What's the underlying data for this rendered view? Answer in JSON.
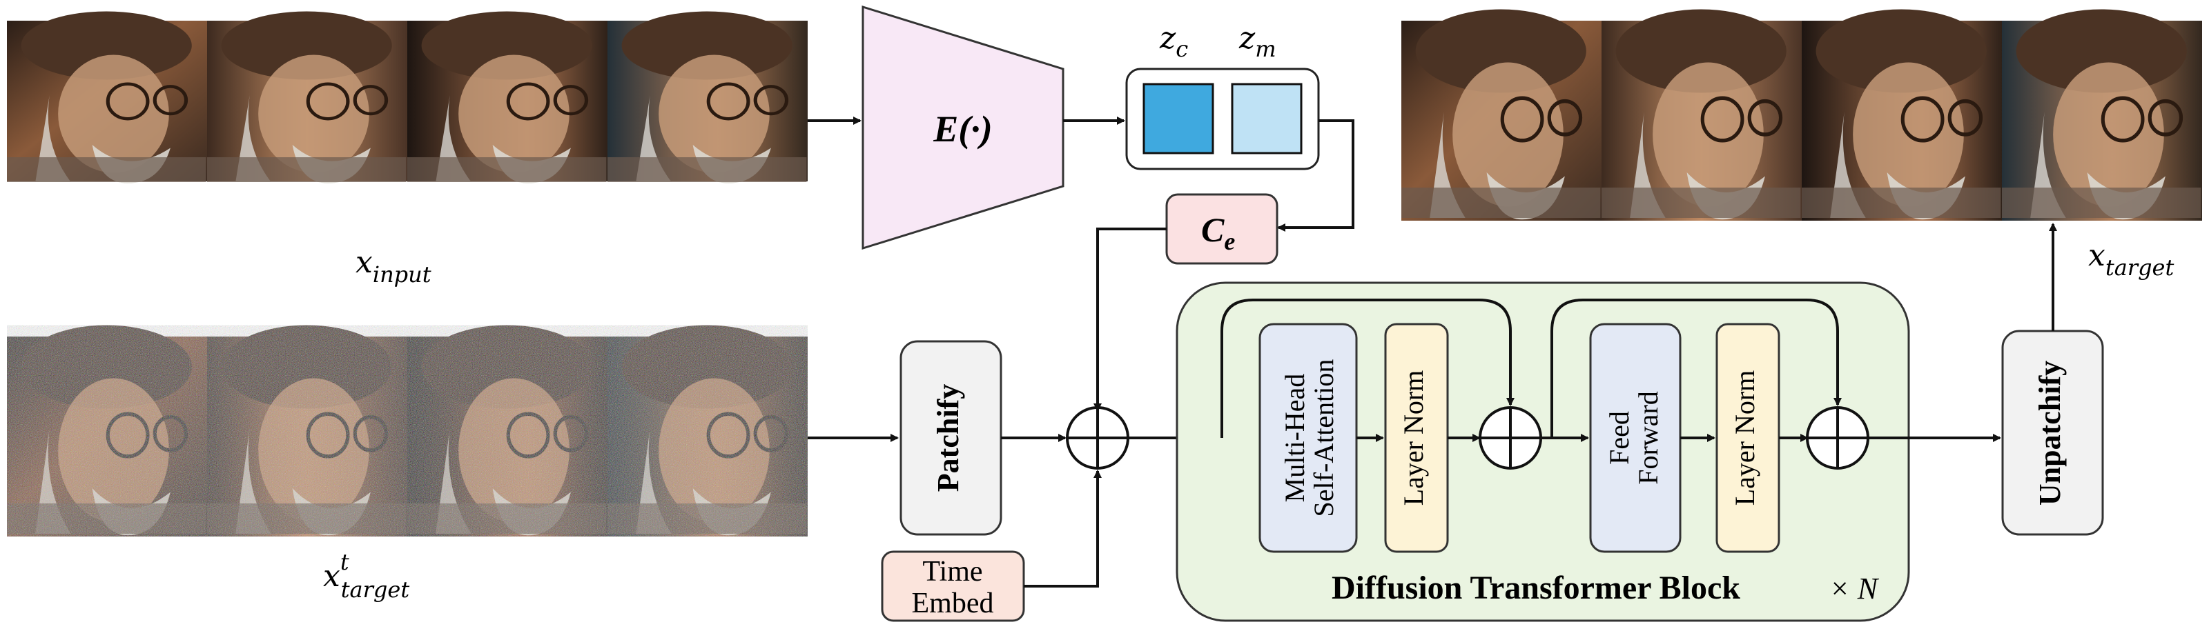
{
  "figure": {
    "top_input_label": "x",
    "top_input_sub": "input",
    "noisy_label": "x",
    "noisy_sup": "t",
    "noisy_sub": "target",
    "output_label": "x",
    "output_sub": "target",
    "encoder_label": "E(·)",
    "latent_zc_main": "z",
    "latent_zc_sub": "c",
    "latent_zm_main": "z",
    "latent_zm_sub": "m",
    "ce_main": "C",
    "ce_sub": "e",
    "patchify_label": "Patchify",
    "unpatchify_label": "Unpatchify",
    "time_embed_line1": "Time",
    "time_embed_line2": "Embed",
    "mhsa_line1": "Multi-Head",
    "mhsa_line2": "Self-Attention",
    "layernorm1_label": "Layer Norm",
    "ff_line1": "Feed",
    "ff_line2": "Forward",
    "layernorm2_label": "Layer Norm",
    "dit_block_label": "Diffusion Transformer Block",
    "repeat_label": "× N"
  },
  "colors": {
    "encoder_fill": "#f8e8f6",
    "zc_fill": "#3fa9df",
    "zm_fill": "#bfe2f5",
    "ce_fill": "#fbe1e2",
    "time_fill": "#fbe4dc",
    "dit_fill": "#eaf4e1",
    "attn_fill": "#e3e9f5",
    "norm_fill": "#fdf3d6",
    "gray_box": "#f2f2f2"
  }
}
